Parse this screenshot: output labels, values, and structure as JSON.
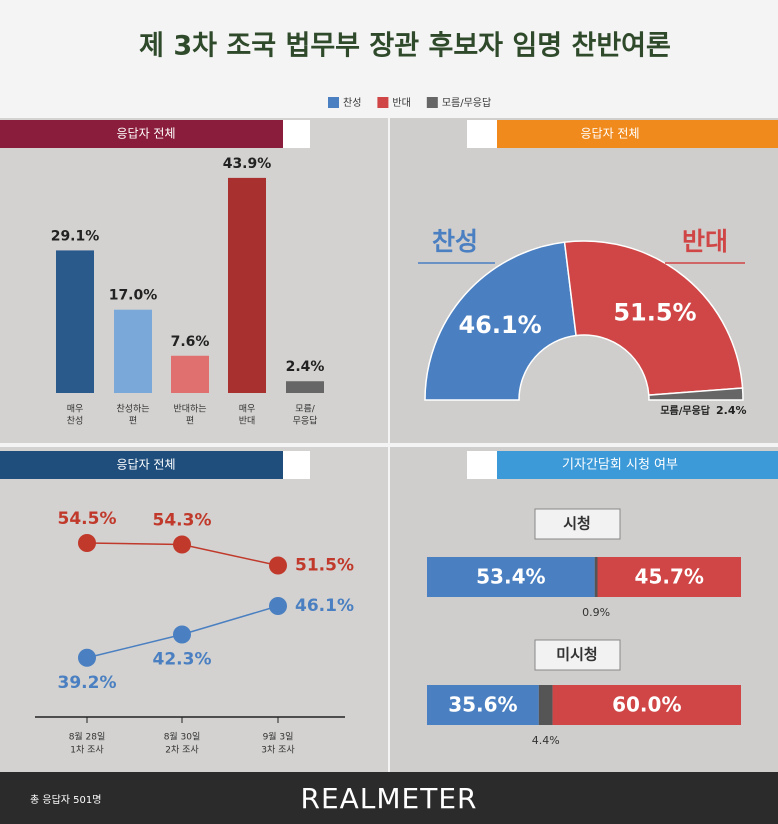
{
  "title": "제 3차 조국 법무부 장관 후보자 임명 찬반여론",
  "legend": [
    {
      "name": "찬성",
      "color": "#4a7fc1"
    },
    {
      "name": "반대",
      "color": "#d04545"
    },
    {
      "name": "모름/무응답",
      "color": "#666666"
    }
  ],
  "chart_data": [
    {
      "type": "bar",
      "title": "응답자 전체",
      "categories": [
        [
          "매우",
          "찬성"
        ],
        [
          "찬성하는",
          "편"
        ],
        [
          "반대하는",
          "편"
        ],
        [
          "매우",
          "반대"
        ],
        [
          "모름/",
          "무응답"
        ]
      ],
      "values": [
        29.1,
        17.0,
        7.6,
        43.9,
        2.4
      ],
      "value_labels": [
        "29.1%",
        "17.0%",
        "7.6%",
        "43.9%",
        "2.4%"
      ],
      "colors": [
        "#2a5a8c",
        "#7aa8d8",
        "#e07070",
        "#a8302e",
        "#666666"
      ]
    },
    {
      "type": "pie",
      "title": "응답자 전체",
      "categories": [
        "찬성",
        "반대",
        "모름/무응답"
      ],
      "values": [
        46.1,
        51.5,
        2.4
      ],
      "value_labels": [
        "46.1%",
        "51.5%",
        "2.4%"
      ],
      "colors": [
        "#4a7fc1",
        "#d04545",
        "#666666"
      ]
    },
    {
      "type": "line",
      "title": "응답자 전체",
      "categories": [
        [
          "8월 28일",
          "1차 조사"
        ],
        [
          "8월 30일",
          "2차 조사"
        ],
        [
          "9월 3일",
          "3차 조사"
        ]
      ],
      "series": [
        {
          "name": "반대",
          "color": "#c0392b",
          "values": [
            54.5,
            54.3,
            51.5
          ],
          "value_labels": [
            "54.5%",
            "54.3%",
            "51.5%"
          ]
        },
        {
          "name": "찬성",
          "color": "#4a7fc1",
          "values": [
            39.2,
            42.3,
            46.1
          ],
          "value_labels": [
            "39.2%",
            "42.3%",
            "46.1%"
          ]
        }
      ]
    },
    {
      "type": "stacked-bar",
      "title": "기자간담회 시청 여부",
      "categories": [
        "시청",
        "미시청"
      ],
      "series": [
        {
          "name": "찬성",
          "color": "#4a7fc1",
          "values": [
            53.4,
            35.6
          ],
          "value_labels": [
            "53.4%",
            "35.6%"
          ]
        },
        {
          "name": "모름/무응답",
          "color": "#555555",
          "values": [
            0.9,
            4.4
          ],
          "value_labels": [
            "0.9%",
            "4.4%"
          ]
        },
        {
          "name": "반대",
          "color": "#d04545",
          "values": [
            45.7,
            60.0
          ],
          "value_labels": [
            "45.7%",
            "60.0%"
          ]
        }
      ]
    }
  ],
  "footer": {
    "note": "총 응답자 501명",
    "brand": "REALMETER"
  }
}
